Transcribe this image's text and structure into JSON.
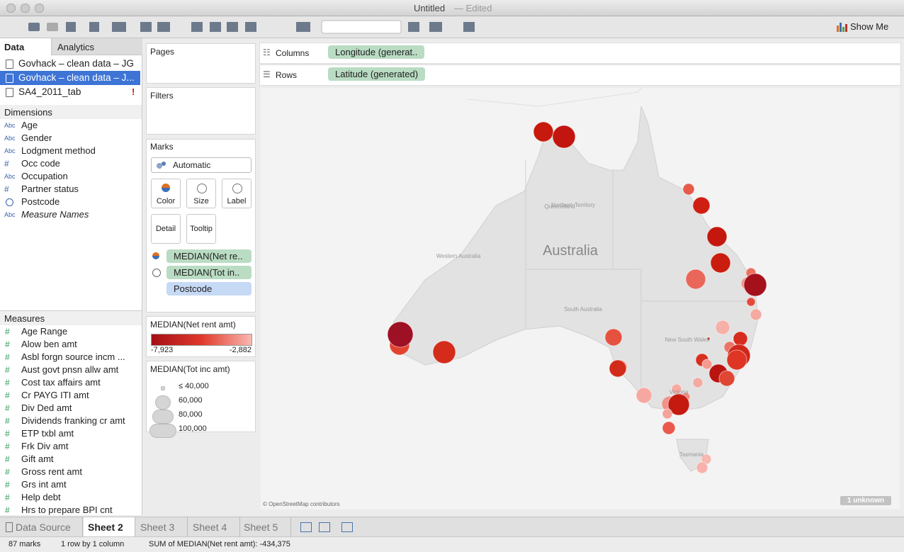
{
  "window": {
    "title": "Untitled",
    "state": "— Edited"
  },
  "toolbar": {
    "show_me": "Show Me"
  },
  "data_pane": {
    "tabs": [
      "Data",
      "Analytics"
    ],
    "sources": [
      "Govhack – clean data – JG",
      "Govhack – clean data – J...",
      "SA4_2011_tab"
    ],
    "dimensions_header": "Dimensions",
    "dimensions": [
      {
        "icon": "Abc",
        "name": "Age"
      },
      {
        "icon": "Abc",
        "name": "Gender"
      },
      {
        "icon": "Abc",
        "name": "Lodgment method"
      },
      {
        "icon": "#",
        "name": "Occ code"
      },
      {
        "icon": "Abc",
        "name": "Occupation"
      },
      {
        "icon": "#",
        "name": "Partner status"
      },
      {
        "icon": null,
        "name": "Postcode"
      },
      {
        "icon": "Abc",
        "name": "Measure Names"
      }
    ],
    "measures_header": "Measures",
    "measures": [
      "Age Range",
      "Alow ben amt",
      "Asbl forgn source incm ...",
      "Aust govt pnsn allw amt",
      "Cost tax affairs amt",
      "Cr PAYG ITI amt",
      "Div Ded amt",
      "Dividends franking cr amt",
      "ETP txbl amt",
      "Frk Div amt",
      "Gift amt",
      "Gross rent amt",
      "Grs int amt",
      "Help debt",
      "Hrs to prepare BPI cnt"
    ],
    "measure_icon": "#"
  },
  "cards": {
    "pages": "Pages",
    "filters": "Filters",
    "marks": {
      "title": "Marks",
      "mark_type": "Automatic",
      "buttons": [
        "Color",
        "Size",
        "Label",
        "Detail",
        "Tooltip"
      ],
      "pills": [
        "MEDIAN(Net re..",
        "MEDIAN(Tot in..",
        "Postcode"
      ]
    },
    "color_legend": {
      "title": "MEDIAN(Net rent amt)",
      "min": "-7,923",
      "max": "-2,882"
    },
    "size_legend": {
      "title": "MEDIAN(Tot inc amt)",
      "items": [
        "≤ 40,000",
        "60,000",
        "80,000",
        "100,000"
      ]
    }
  },
  "shelves": {
    "columns": {
      "label": "Columns",
      "pill": "Longitude (generat.."
    },
    "rows": {
      "label": "Rows",
      "pill": "Latitude (generated)"
    }
  },
  "map": {
    "labels": [
      "Australia",
      "Northern Territory",
      "Queensland",
      "Western Australia",
      "South Australia",
      "New South Wales",
      "Victoria",
      "Tasmania"
    ],
    "attribution": "© OpenStreetMap contributors",
    "unknown": "1 unknown"
  },
  "sheet_tabs": [
    "Data Source",
    "Sheet 2",
    "Sheet 3",
    "Sheet 4",
    "Sheet 5"
  ],
  "active_tab": 1,
  "status": [
    "87 marks",
    "1 row by 1 column",
    "SUM of MEDIAN(Net rent amt): -434,375"
  ]
}
